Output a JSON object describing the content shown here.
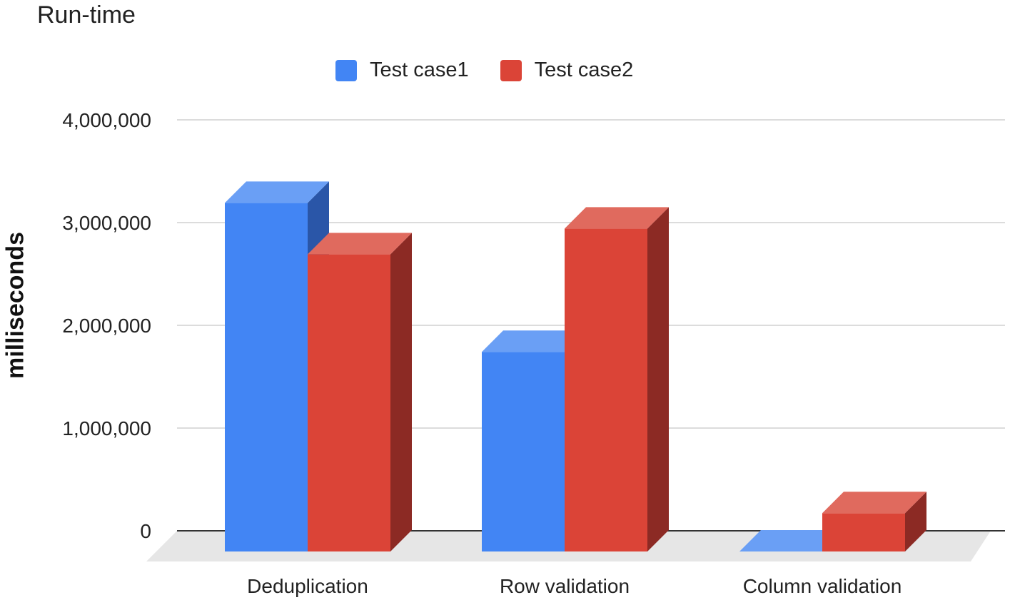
{
  "chart_data": {
    "type": "bar",
    "title": "Run-time",
    "xlabel": "",
    "ylabel": "milliseconds",
    "categories": [
      "Deduplication",
      "Row validation",
      "Column validation"
    ],
    "series": [
      {
        "name": "Test case1",
        "values": [
          3400000,
          1950000,
          0
        ]
      },
      {
        "name": "Test case2",
        "values": [
          2900000,
          3150000,
          380000
        ]
      }
    ],
    "ylim": [
      0,
      4000000
    ],
    "yticks": [
      0,
      1000000,
      2000000,
      3000000,
      4000000
    ],
    "ytick_labels": [
      "0",
      "1,000,000",
      "2,000,000",
      "3,000,000",
      "4,000,000"
    ],
    "grid": true,
    "legend_position": "top",
    "style": "3d",
    "colors": {
      "Test case1": {
        "front": "#4285f4",
        "top": "#6a9ff5",
        "side": "#2a56a8"
      },
      "Test case2": {
        "front": "#db4437",
        "top": "#e06a5e",
        "side": "#8c2a24"
      }
    }
  }
}
